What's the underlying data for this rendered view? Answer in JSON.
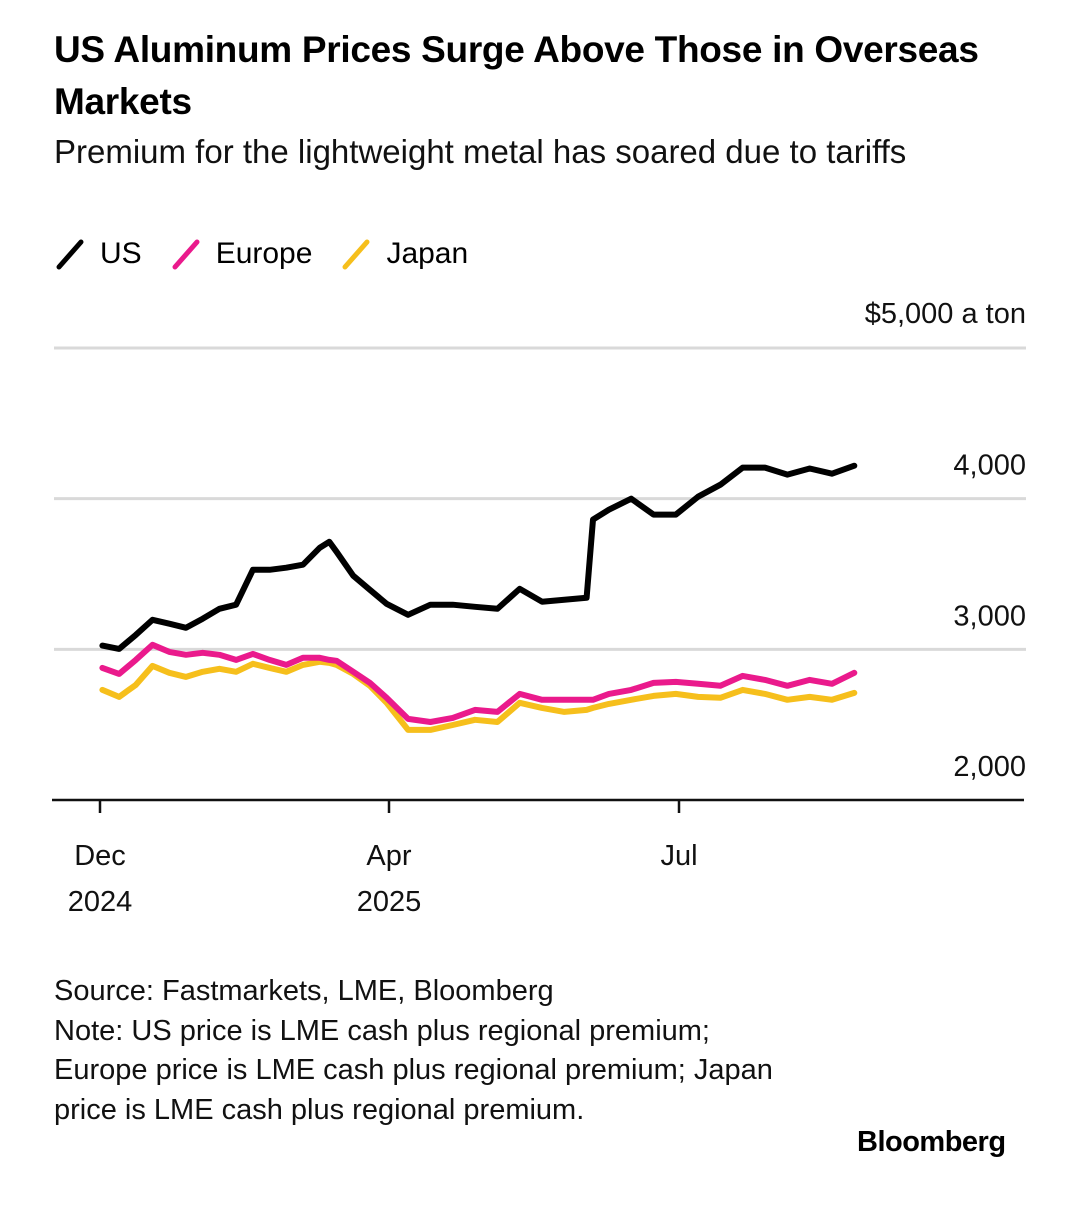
{
  "title": "US Aluminum Prices Surge Above Those in Overseas Markets",
  "subtitle": "Premium for the lightweight metal has soared due to tariffs",
  "source": "Source: Fastmarkets, LME, Bloomberg",
  "note": "Note: US price is LME cash plus regional premium; Europe price is LME cash plus regional premium; Japan price is LME cash plus regional premium.",
  "brand": "Bloomberg",
  "chart_data": {
    "type": "line",
    "title": "US Aluminum Prices Surge Above Those in Overseas Markets",
    "subtitle": "Premium for the lightweight metal has soared due to tariffs",
    "y_unit_label": "$5,000 a ton",
    "ylim": [
      2000,
      5000
    ],
    "y_ticks": [
      2000,
      3000,
      4000,
      5000
    ],
    "y_tick_labels": [
      "2,000",
      "3,000",
      "4,000",
      "$5,000 a ton"
    ],
    "x_ticks": [
      {
        "date": "2024-12-01",
        "label": "Dec",
        "sublabel": "2024"
      },
      {
        "date": "2025-04-01",
        "label": "Apr",
        "sublabel": "2025"
      },
      {
        "date": "2025-07-01",
        "label": "Jul",
        "sublabel": ""
      }
    ],
    "grid": true,
    "legend_placement": "top-left",
    "x": [
      "2024-12-02",
      "2024-12-09",
      "2024-12-16",
      "2024-12-23",
      "2024-12-30",
      "2025-01-06",
      "2025-01-13",
      "2025-01-20",
      "2025-01-27",
      "2025-02-03",
      "2025-02-10",
      "2025-02-17",
      "2025-02-24",
      "2025-03-03",
      "2025-03-07",
      "2025-03-10",
      "2025-03-17",
      "2025-03-24",
      "2025-03-31",
      "2025-04-07",
      "2025-04-14",
      "2025-04-21",
      "2025-04-28",
      "2025-05-05",
      "2025-05-12",
      "2025-05-19",
      "2025-05-26",
      "2025-06-02",
      "2025-06-04",
      "2025-06-09",
      "2025-06-16",
      "2025-06-23",
      "2025-06-30",
      "2025-07-07",
      "2025-07-14",
      "2025-07-21",
      "2025-07-28",
      "2025-08-04",
      "2025-08-11",
      "2025-08-18",
      "2025-08-25"
    ],
    "series": [
      {
        "name": "US",
        "color": "#000000",
        "values": [
          3025,
          3003,
          3096,
          3196,
          3170,
          3143,
          3203,
          3269,
          3296,
          3528,
          3528,
          3542,
          3562,
          3674,
          3714,
          3648,
          3489,
          3395,
          3302,
          3229,
          3296,
          3296,
          3282,
          3269,
          3402,
          3316,
          3329,
          3342,
          3861,
          3927,
          4000,
          3894,
          3894,
          4013,
          4093,
          4206,
          4206,
          4160,
          4200,
          4166,
          4219
        ]
      },
      {
        "name": "Europe",
        "color": "#ea1a8c",
        "values": [
          2877,
          2837,
          2930,
          3030,
          2983,
          2964,
          2977,
          2964,
          2930,
          2970,
          2930,
          2897,
          2944,
          2944,
          2930,
          2924,
          2851,
          2777,
          2678,
          2538,
          2518,
          2545,
          2598,
          2585,
          2704,
          2665,
          2665,
          2665,
          2665,
          2704,
          2731,
          2777,
          2784,
          2771,
          2758,
          2824,
          2797,
          2758,
          2797,
          2771,
          2844
        ]
      },
      {
        "name": "Japan",
        "color": "#f6bf1c",
        "values": [
          2731,
          2684,
          2764,
          2890,
          2844,
          2817,
          2851,
          2871,
          2851,
          2904,
          2877,
          2851,
          2897,
          2917,
          2910,
          2897,
          2837,
          2758,
          2645,
          2465,
          2465,
          2498,
          2532,
          2518,
          2645,
          2611,
          2585,
          2598,
          2611,
          2638,
          2665,
          2691,
          2704,
          2684,
          2678,
          2731,
          2704,
          2665,
          2684,
          2665,
          2711
        ]
      }
    ]
  }
}
